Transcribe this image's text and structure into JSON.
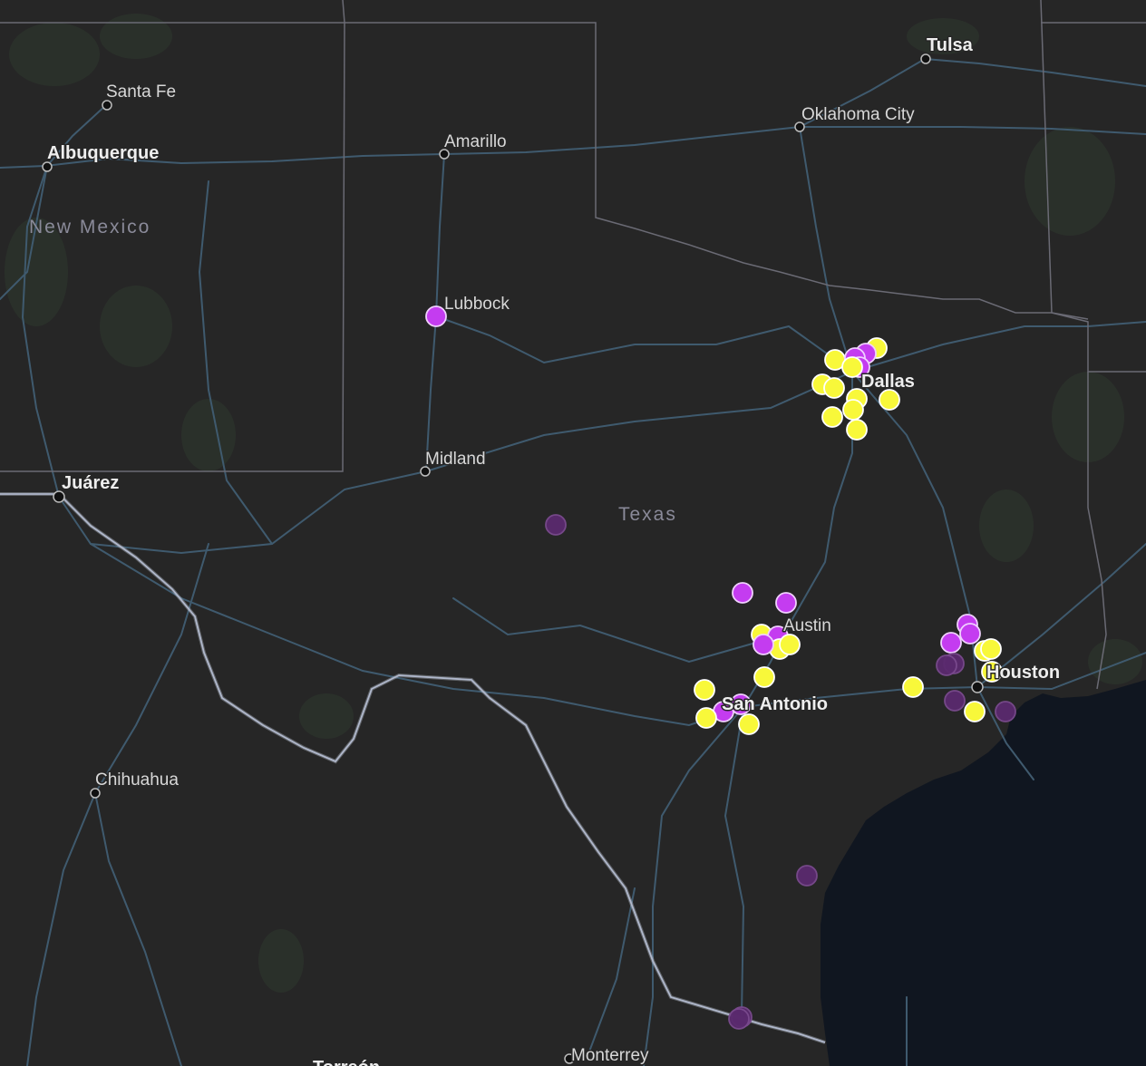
{
  "map": {
    "cities": [
      {
        "id": "tulsa",
        "name": "Tulsa",
        "major": true
      },
      {
        "id": "oklahoma-city",
        "name": "Oklahoma City",
        "major": false
      },
      {
        "id": "santa-fe",
        "name": "Santa Fe",
        "major": false
      },
      {
        "id": "albuquerque",
        "name": "Albuquerque",
        "major": true
      },
      {
        "id": "amarillo",
        "name": "Amarillo",
        "major": false
      },
      {
        "id": "lubbock",
        "name": "Lubbock",
        "major": false
      },
      {
        "id": "midland",
        "name": "Midland",
        "major": false
      },
      {
        "id": "juarez",
        "name": "Juárez",
        "major": true
      },
      {
        "id": "dallas",
        "name": "Dallas",
        "major": true
      },
      {
        "id": "austin",
        "name": "Austin",
        "major": false
      },
      {
        "id": "san-antonio",
        "name": "San Antonio",
        "major": true
      },
      {
        "id": "houston",
        "name": "Houston",
        "major": true
      },
      {
        "id": "chihuahua",
        "name": "Chihuahua",
        "major": false
      },
      {
        "id": "monterrey",
        "name": "Monterrey",
        "major": false
      },
      {
        "id": "torreon",
        "name": "Torreón",
        "major": false
      }
    ],
    "states": [
      {
        "id": "new-mexico",
        "name": "New Mexico"
      },
      {
        "id": "texas",
        "name": "Texas"
      }
    ],
    "colors": {
      "background": "#262626",
      "water": "#101620",
      "road": "#3f5a6e",
      "border": "#6a6a74",
      "intl_border": "#b0b8cc",
      "marker_yellow": "#f8f83a",
      "marker_purple": "#c43cf0",
      "marker_dark": "#5a2a6e"
    }
  }
}
